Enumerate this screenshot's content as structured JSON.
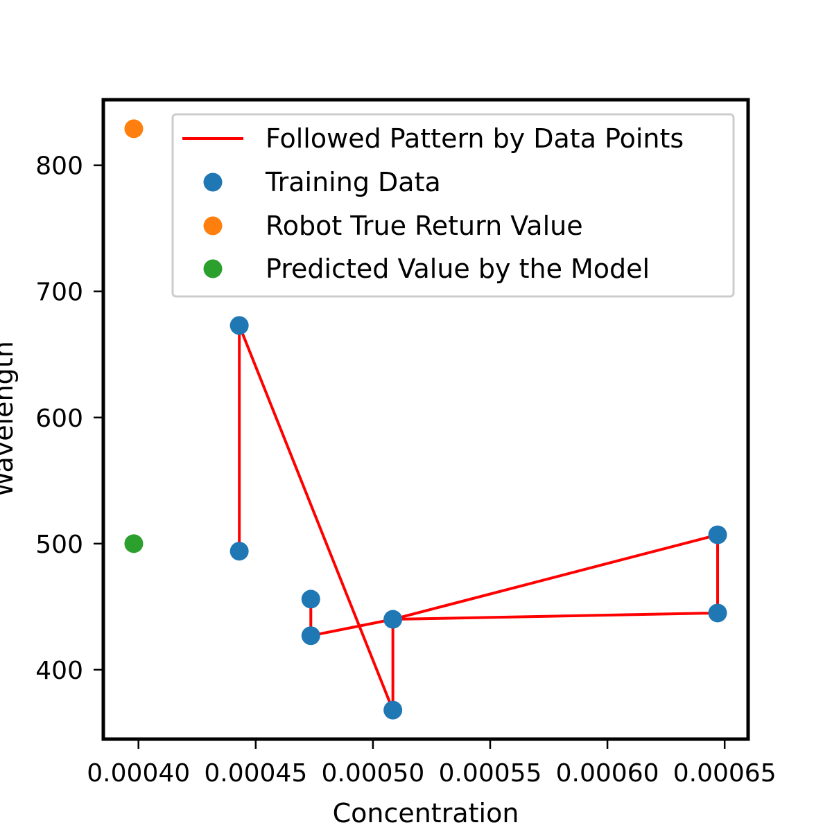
{
  "chart_data": {
    "type": "scatter",
    "title": "",
    "xlabel": "Concentration",
    "ylabel": "Wavelength",
    "xlim": [
      0.000385,
      0.00066
    ],
    "ylim": [
      345,
      852
    ],
    "xticks": [
      0.0004,
      0.00045,
      0.0005,
      0.00055,
      0.0006,
      0.00065
    ],
    "xtick_labels": [
      "0.00040",
      "0.00045",
      "0.00050",
      "0.00055",
      "0.00060",
      "0.00065"
    ],
    "yticks": [
      400,
      500,
      600,
      700,
      800
    ],
    "ytick_labels": [
      "400",
      "500",
      "600",
      "700",
      "800"
    ],
    "grid": false,
    "legend_position": "upper right",
    "series": [
      {
        "name": "Followed Pattern by Data Points",
        "kind": "line",
        "color": "#ff0000",
        "x": [
          0.000443,
          0.000443,
          0.0005085,
          0.0005085,
          0.000647,
          0.000647,
          0.0005085,
          0.0004735,
          0.0004735
        ],
        "y": [
          494,
          673,
          368,
          440,
          507,
          445,
          440,
          427,
          456
        ]
      },
      {
        "name": "Training Data",
        "kind": "scatter",
        "color": "#1f77b4",
        "x": [
          0.000443,
          0.000443,
          0.0004735,
          0.0004735,
          0.0005085,
          0.0005085,
          0.000647,
          0.000647
        ],
        "y": [
          673,
          494,
          456,
          427,
          440,
          368,
          507,
          445
        ]
      },
      {
        "name": "Robot True Return Value",
        "kind": "scatter",
        "color": "#ff7f0e",
        "x": [
          0.000398
        ],
        "y": [
          829
        ]
      },
      {
        "name": "Predicted Value by the Model",
        "kind": "scatter",
        "color": "#2ca02c",
        "x": [
          0.000398
        ],
        "y": [
          500
        ]
      }
    ]
  }
}
